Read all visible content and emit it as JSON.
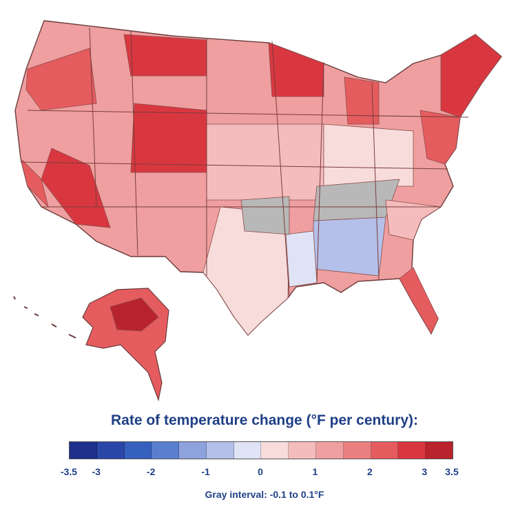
{
  "legend": {
    "title": "Rate of temperature change (°F per century):",
    "ticks": [
      "-3.5",
      "-3",
      "-2",
      "-1",
      "0",
      "1",
      "2",
      "3",
      "3.5"
    ],
    "tick_values": [
      -3.5,
      -3,
      -2,
      -1,
      0,
      1,
      2,
      3,
      3.5
    ],
    "note": "Gray interval: -0.1 to 0.1°F",
    "range": [
      -3.5,
      3.5
    ],
    "bins": [
      {
        "from": -3.5,
        "to": -3.0,
        "color": "#1e2f8c"
      },
      {
        "from": -3.0,
        "to": -2.5,
        "color": "#2a47a8"
      },
      {
        "from": -2.5,
        "to": -2.0,
        "color": "#3560bf"
      },
      {
        "from": -2.0,
        "to": -1.5,
        "color": "#5b7fcf"
      },
      {
        "from": -1.5,
        "to": -1.0,
        "color": "#8ea3dd"
      },
      {
        "from": -1.0,
        "to": -0.5,
        "color": "#b4c0e9"
      },
      {
        "from": -0.5,
        "to": 0.0,
        "color": "#dfe3f5"
      },
      {
        "from": 0.0,
        "to": 0.5,
        "color": "#f8dcdc"
      },
      {
        "from": 0.5,
        "to": 1.0,
        "color": "#f4bcbc"
      },
      {
        "from": 1.0,
        "to": 1.5,
        "color": "#ef9f9f"
      },
      {
        "from": 1.5,
        "to": 2.0,
        "color": "#ea7f80"
      },
      {
        "from": 2.0,
        "to": 2.5,
        "color": "#e55c5f"
      },
      {
        "from": 2.5,
        "to": 3.0,
        "color": "#d93740"
      },
      {
        "from": 3.0,
        "to": 3.5,
        "color": "#b8232d"
      }
    ],
    "gray_color": "#b8b8b8"
  },
  "map": {
    "land_color": "#ef9f9f",
    "border_color": "#6a3a3a"
  }
}
